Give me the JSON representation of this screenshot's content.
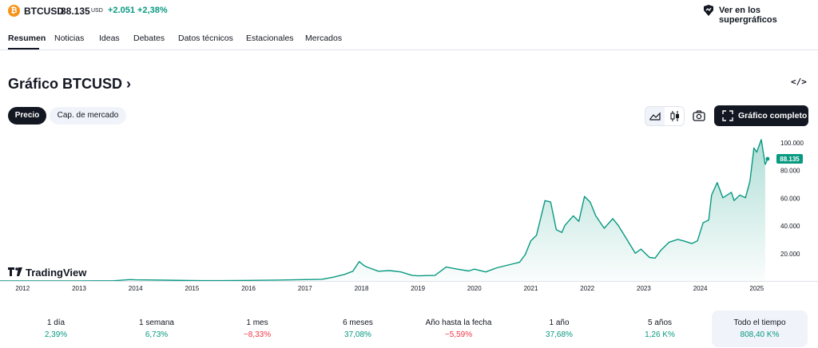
{
  "header": {
    "coin_icon": "bitcoin-icon",
    "symbol": "BTCUSD",
    "price": "88.135",
    "currency": "USD",
    "change": "+2.051",
    "change_pct": "+2,38%",
    "supercharts_icon": "supercharts-icon",
    "supercharts_link": "Ver en los supergráficos"
  },
  "tabs": [
    {
      "label": "Resumen",
      "active": true
    },
    {
      "label": "Noticias"
    },
    {
      "label": "Ideas"
    },
    {
      "label": "Debates"
    },
    {
      "label": "Datos técnicos"
    },
    {
      "label": "Estacionales"
    },
    {
      "label": "Mercados"
    }
  ],
  "main": {
    "title": "Gráfico BTCUSD",
    "title_chevron": "›",
    "embed_icon": "code-icon"
  },
  "chart_toggle": {
    "price_label": "Precio",
    "market_cap_label": "Cap. de mercado"
  },
  "toolbar": {
    "area_icon": "area-chart-icon",
    "candle_icon": "candle-chart-icon",
    "camera_icon": "camera-icon",
    "full_chart_icon": "fullscreen-icon",
    "full_chart_label": "Gráfico completo"
  },
  "chart_data": {
    "type": "area",
    "watermark": "TradingView",
    "x_ticks": [
      "2012",
      "2013",
      "2014",
      "2015",
      "2016",
      "2017",
      "2018",
      "2019",
      "2020",
      "2021",
      "2022",
      "2023",
      "2024",
      "2025"
    ],
    "y_ticks": [
      "20.000",
      "40.000",
      "60.000",
      "80.000",
      "100.000"
    ],
    "y_tick_values": [
      20000,
      40000,
      60000,
      80000,
      100000
    ],
    "ylim": [
      0,
      106000
    ],
    "xlim": [
      2011.6,
      2025.25
    ],
    "last_price_label": "88.135",
    "last_price": 88135,
    "color": "#089981",
    "x": [
      2011.6,
      2012.0,
      2012.5,
      2013.0,
      2013.3,
      2013.6,
      2013.9,
      2014.0,
      2014.5,
      2015.0,
      2015.5,
      2016.0,
      2016.5,
      2017.0,
      2017.3,
      2017.5,
      2017.7,
      2017.85,
      2017.96,
      2018.05,
      2018.1,
      2018.3,
      2018.5,
      2018.7,
      2018.9,
      2019.0,
      2019.3,
      2019.5,
      2019.7,
      2019.9,
      2020.0,
      2020.2,
      2020.4,
      2020.6,
      2020.8,
      2020.9,
      2021.0,
      2021.1,
      2021.25,
      2021.35,
      2021.45,
      2021.55,
      2021.6,
      2021.75,
      2021.85,
      2021.95,
      2022.05,
      2022.15,
      2022.3,
      2022.45,
      2022.55,
      2022.7,
      2022.85,
      2022.95,
      2023.1,
      2023.2,
      2023.3,
      2023.45,
      2023.6,
      2023.7,
      2023.85,
      2023.95,
      2024.05,
      2024.15,
      2024.2,
      2024.3,
      2024.4,
      2024.55,
      2024.6,
      2024.7,
      2024.8,
      2024.88,
      2024.95,
      2025.0,
      2025.08,
      2025.15
    ],
    "values": [
      5,
      7,
      10,
      20,
      100,
      120,
      1000,
      800,
      600,
      300,
      250,
      430,
      650,
      1000,
      1200,
      2700,
      4700,
      7000,
      14000,
      11000,
      10000,
      7000,
      7500,
      6500,
      4000,
      3700,
      4000,
      10000,
      8500,
      7200,
      8500,
      6500,
      9500,
      11500,
      13500,
      19000,
      29000,
      33000,
      58000,
      57000,
      37000,
      35000,
      40000,
      47000,
      43000,
      61000,
      57000,
      47000,
      38000,
      45000,
      40000,
      30000,
      20000,
      23000,
      17000,
      16500,
      22000,
      28000,
      30000,
      29000,
      27000,
      29000,
      42000,
      44000,
      62000,
      71000,
      60000,
      64000,
      58000,
      62000,
      60000,
      72000,
      96000,
      93000,
      102000,
      84000
    ]
  },
  "periods": [
    {
      "label": "1 día",
      "value": "2,39%",
      "trend": "pos"
    },
    {
      "label": "1 semana",
      "value": "6,73%",
      "trend": "pos"
    },
    {
      "label": "1 mes",
      "value": "−8,33%",
      "trend": "neg"
    },
    {
      "label": "6 meses",
      "value": "37,08%",
      "trend": "pos"
    },
    {
      "label": "Año hasta la fecha",
      "value": "−5,59%",
      "trend": "neg"
    },
    {
      "label": "1 año",
      "value": "37,68%",
      "trend": "pos"
    },
    {
      "label": "5 años",
      "value": "1,26 K%",
      "trend": "pos"
    },
    {
      "label": "Todo el tiempo",
      "value": "808,40 K%",
      "trend": "pos",
      "selected": true
    }
  ]
}
